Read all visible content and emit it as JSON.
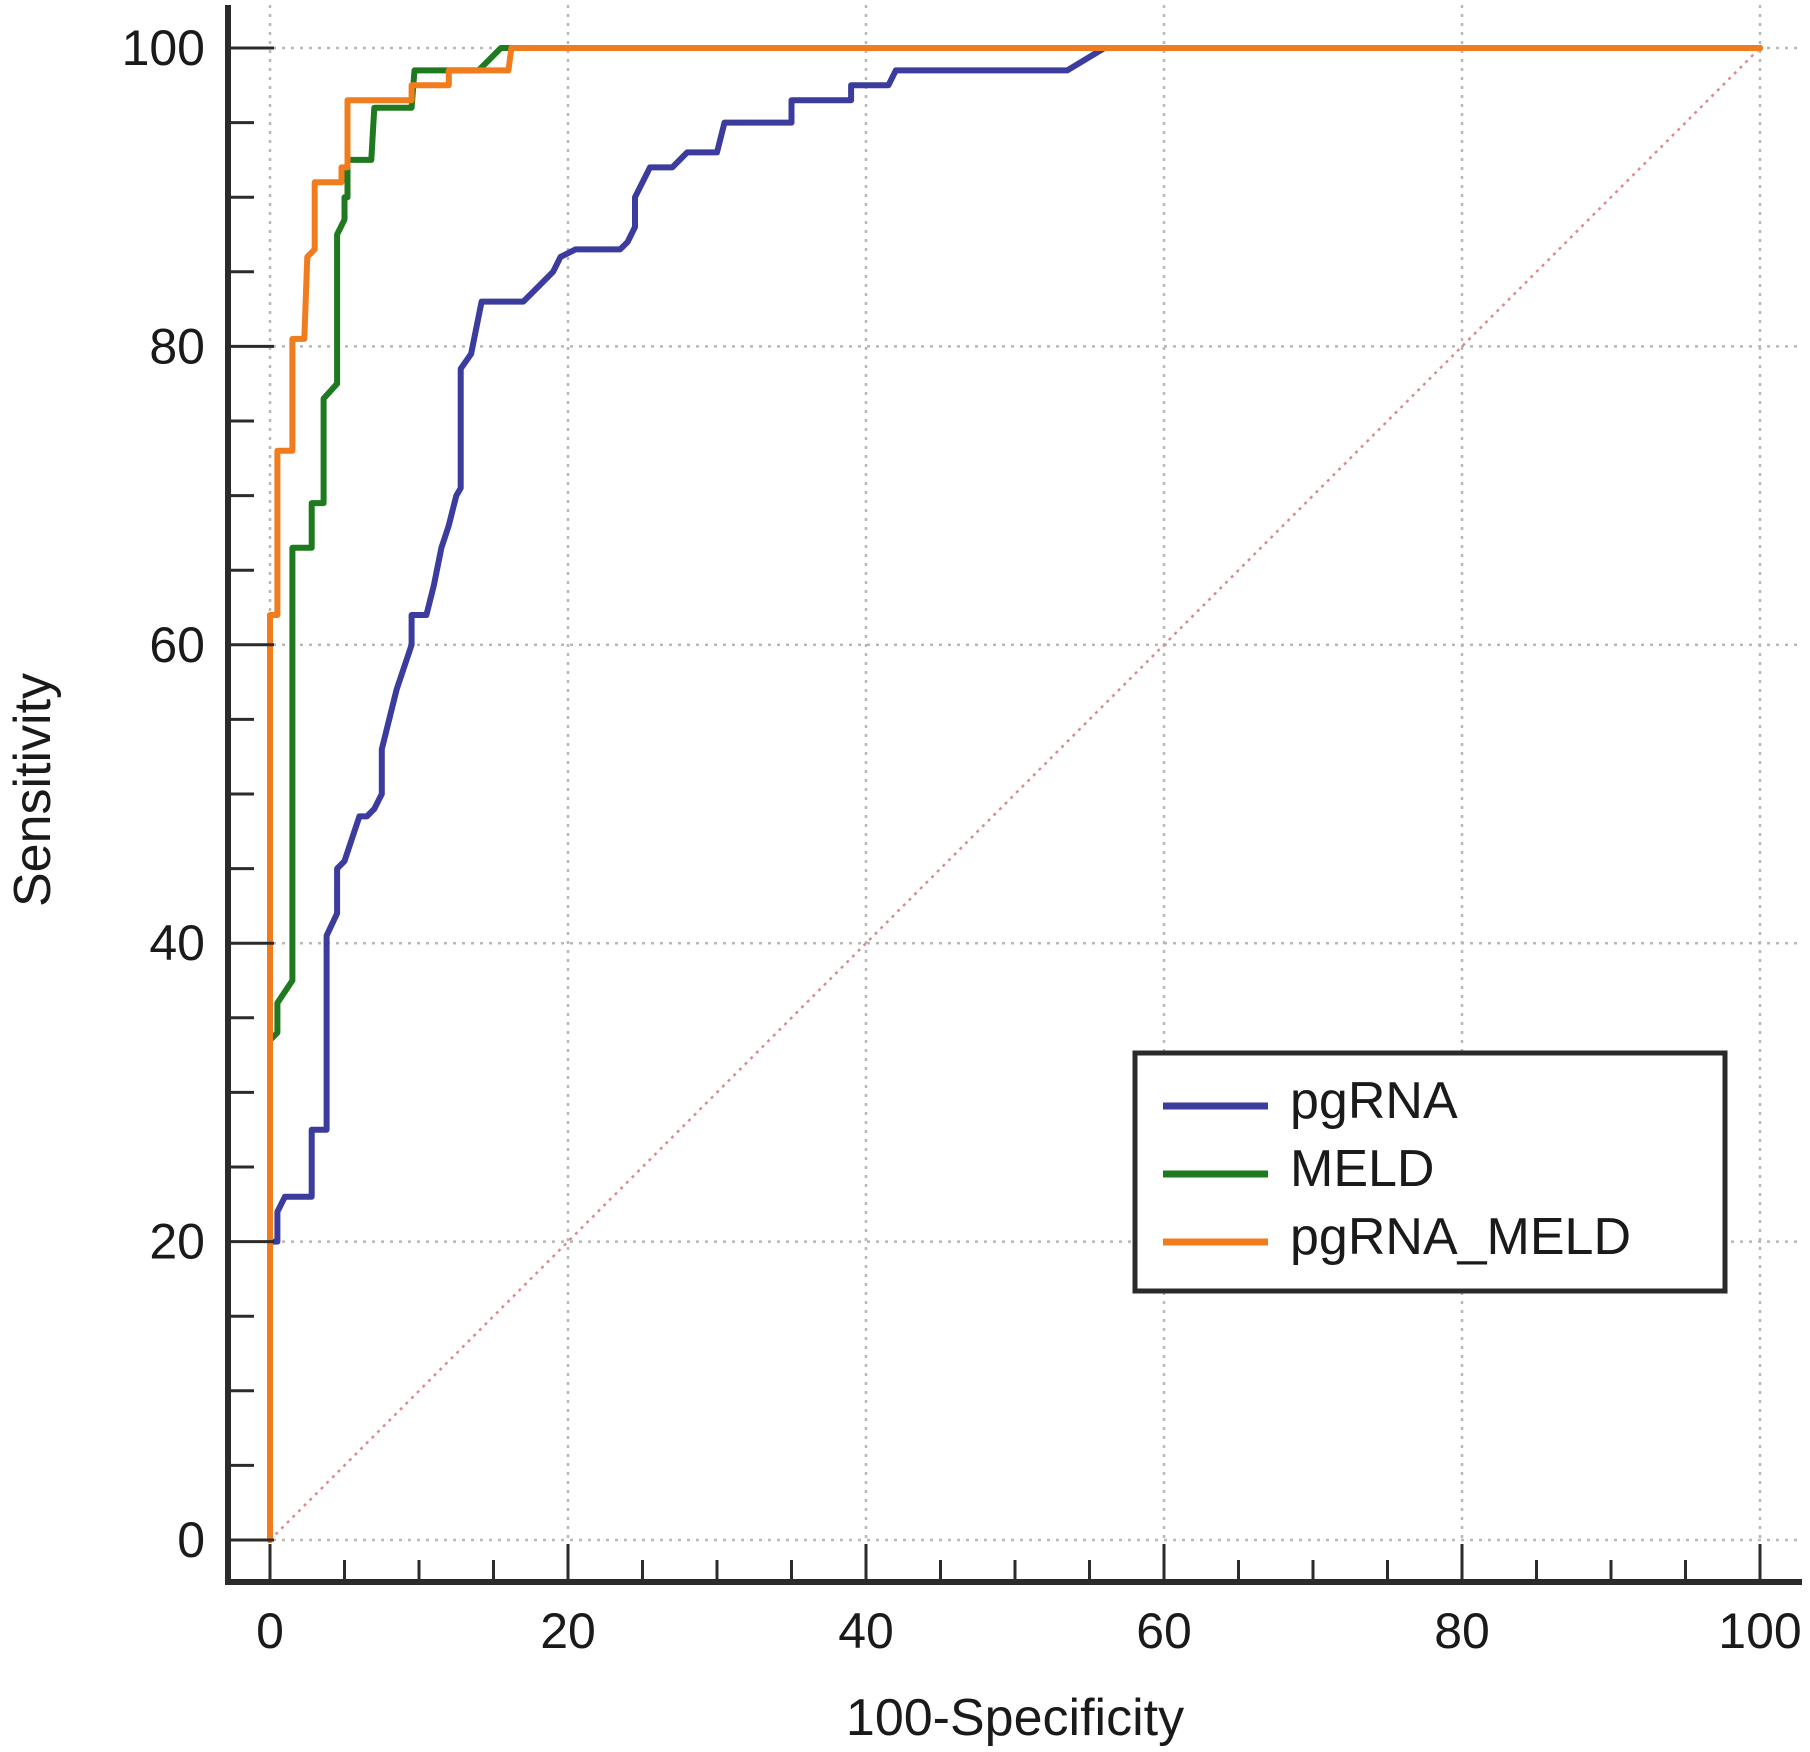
{
  "chart_data": {
    "type": "line",
    "title": "",
    "xlabel": "100-Specificity",
    "ylabel": "Sensitivity",
    "xlim": [
      0,
      100
    ],
    "ylim": [
      0,
      100
    ],
    "xticks": [
      0,
      20,
      40,
      60,
      80,
      100
    ],
    "yticks": [
      0,
      20,
      40,
      60,
      80,
      100
    ],
    "xtick_labels": [
      "0",
      "20",
      "40",
      "60",
      "80",
      "100"
    ],
    "ytick_labels": [
      "0",
      "20",
      "40",
      "60",
      "80",
      "100"
    ],
    "grid": true,
    "legend_position": "bottom-right",
    "reference_line": {
      "style": "dotted",
      "color": "#d98c8c",
      "points": [
        [
          0,
          0
        ],
        [
          100,
          100
        ]
      ]
    },
    "series": [
      {
        "name": "pgRNA",
        "color": "#3c3c9e",
        "points": [
          [
            0,
            0
          ],
          [
            0,
            20
          ],
          [
            0.5,
            20
          ],
          [
            0.5,
            22
          ],
          [
            1,
            23
          ],
          [
            2,
            23
          ],
          [
            2.8,
            23
          ],
          [
            2.8,
            27.5
          ],
          [
            3.8,
            27.5
          ],
          [
            3.8,
            40.5
          ],
          [
            4.5,
            42
          ],
          [
            4.5,
            45
          ],
          [
            5,
            45.5
          ],
          [
            5.5,
            47
          ],
          [
            6,
            48.5
          ],
          [
            6.5,
            48.5
          ],
          [
            7,
            49
          ],
          [
            7.5,
            50
          ],
          [
            7.5,
            53
          ],
          [
            8,
            55
          ],
          [
            8.5,
            57
          ],
          [
            9,
            58.5
          ],
          [
            9.5,
            60
          ],
          [
            9.5,
            62
          ],
          [
            10.5,
            62
          ],
          [
            11,
            64
          ],
          [
            11.5,
            66.5
          ],
          [
            12,
            68
          ],
          [
            12.5,
            70
          ],
          [
            12.8,
            70.5
          ],
          [
            12.8,
            78.5
          ],
          [
            13.5,
            79.5
          ],
          [
            14.2,
            83
          ],
          [
            17,
            83
          ],
          [
            18,
            84
          ],
          [
            19,
            85
          ],
          [
            19.5,
            86
          ],
          [
            20.5,
            86.5
          ],
          [
            23.5,
            86.5
          ],
          [
            24,
            87
          ],
          [
            24.5,
            88
          ],
          [
            24.5,
            90
          ],
          [
            25,
            91
          ],
          [
            25.5,
            92
          ],
          [
            27,
            92
          ],
          [
            28,
            93
          ],
          [
            30,
            93
          ],
          [
            30.5,
            95
          ],
          [
            35,
            95
          ],
          [
            35,
            96.5
          ],
          [
            39,
            96.5
          ],
          [
            39,
            97.5
          ],
          [
            41.5,
            97.5
          ],
          [
            42,
            98.5
          ],
          [
            53.5,
            98.5
          ],
          [
            56,
            100
          ],
          [
            100,
            100
          ]
        ]
      },
      {
        "name": "MELD",
        "color": "#1f7a1f",
        "points": [
          [
            0,
            0
          ],
          [
            0,
            33.5
          ],
          [
            0.5,
            34
          ],
          [
            0.5,
            36
          ],
          [
            1.5,
            37.5
          ],
          [
            1.5,
            66.5
          ],
          [
            2.8,
            66.5
          ],
          [
            2.8,
            69.5
          ],
          [
            3.6,
            69.5
          ],
          [
            3.6,
            76.5
          ],
          [
            4.5,
            77.5
          ],
          [
            4.5,
            87.5
          ],
          [
            5,
            88.5
          ],
          [
            5,
            90
          ],
          [
            5.2,
            90
          ],
          [
            5.2,
            92.5
          ],
          [
            6.8,
            92.5
          ],
          [
            7,
            96
          ],
          [
            9.5,
            96
          ],
          [
            9.7,
            98.5
          ],
          [
            11,
            98.5
          ],
          [
            14,
            98.5
          ],
          [
            15.5,
            100
          ],
          [
            100,
            100
          ]
        ]
      },
      {
        "name": "pgRNA_MELD",
        "color": "#f07c1d",
        "points": [
          [
            0,
            0
          ],
          [
            0,
            62
          ],
          [
            0.5,
            62
          ],
          [
            0.5,
            73
          ],
          [
            1.5,
            73
          ],
          [
            1.5,
            80.5
          ],
          [
            2.3,
            80.5
          ],
          [
            2.5,
            86
          ],
          [
            3,
            86.5
          ],
          [
            3,
            91
          ],
          [
            4.8,
            91
          ],
          [
            4.8,
            92
          ],
          [
            5.2,
            92
          ],
          [
            5.2,
            96.5
          ],
          [
            9.5,
            96.5
          ],
          [
            9.5,
            97.5
          ],
          [
            12,
            97.5
          ],
          [
            12,
            98.5
          ],
          [
            16,
            98.5
          ],
          [
            16.2,
            100
          ],
          [
            100,
            100
          ]
        ]
      }
    ]
  }
}
